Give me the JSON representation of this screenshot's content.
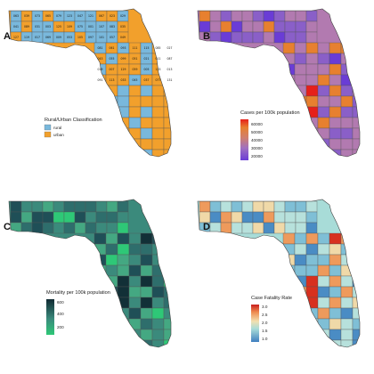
{
  "panels": [
    {
      "label": "A",
      "legend_title": "Rural/Urban Classification",
      "legend_items": [
        {
          "label": "rural",
          "color": "#79b8dc"
        },
        {
          "label": "urban",
          "color": "#f2a02c"
        }
      ]
    },
    {
      "label": "B",
      "legend_title": "Cases per 100k population",
      "ticks": [
        "60000",
        "50000",
        "40000",
        "30000",
        "20000"
      ]
    },
    {
      "label": "C",
      "legend_title": "Mortality per 100k population",
      "ticks": [
        "600",
        "400",
        "200"
      ]
    },
    {
      "label": "D",
      "legend_title": "Case Fatality Rate",
      "ticks": [
        "3.0",
        "2.5",
        "2.0",
        "1.5",
        "1.0"
      ]
    }
  ],
  "county_codes": [
    "063",
    "039",
    "073",
    "065",
    "079",
    "123",
    "047",
    "121",
    "067",
    "023",
    "029",
    "041",
    "089",
    "031",
    "003",
    "125",
    "109",
    "075",
    "001",
    "107",
    "083",
    "035",
    "127",
    "119",
    "017",
    "069",
    "009",
    "053",
    "105",
    "097",
    "101",
    "057",
    "049",
    "081",
    "061",
    "093",
    "111",
    "115",
    "085",
    "027",
    "043",
    "055",
    "099",
    "051",
    "021",
    "011",
    "087",
    "019",
    "007",
    "129",
    "059",
    "005",
    "133",
    "013",
    "091",
    "113",
    "033",
    "045",
    "037",
    "077",
    "131"
  ],
  "colors": {
    "rural": "#79b8dc",
    "urban": "#f2a02c",
    "cases_scale": [
      "#6a3cd6",
      "#8a5fc8",
      "#b27ab0",
      "#cf7f6e",
      "#e7802f",
      "#f2c430"
    ],
    "mortality_scale": [
      "#2ec877",
      "#44a882",
      "#3b8a7c",
      "#2e6e6c",
      "#1f4f57",
      "#123037"
    ],
    "cfr_scale": [
      "#4a8cc4",
      "#7fbfd6",
      "#b7e1dc",
      "#f0d9a8",
      "#ee9a5c",
      "#d7301f"
    ]
  }
}
